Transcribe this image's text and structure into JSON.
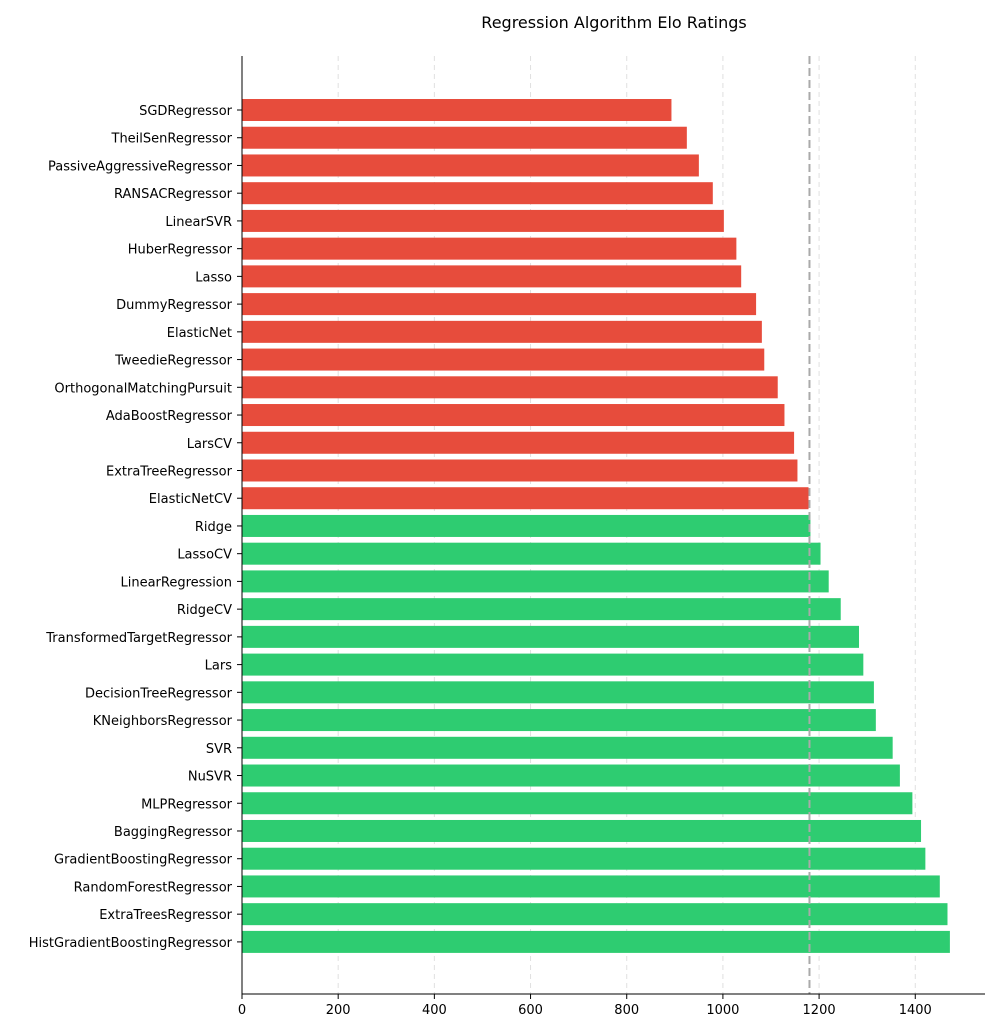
{
  "chart_data": {
    "type": "bar",
    "orientation": "horizontal",
    "title": "Regression Algorithm Elo Ratings",
    "xlabel": "",
    "ylabel": "",
    "xlim": [
      0,
      1545
    ],
    "xticks": [
      "0",
      "200",
      "400",
      "600",
      "800",
      "1000",
      "1200",
      "1400"
    ],
    "grid": "vertical dashed",
    "reference_line": 1180,
    "colors": {
      "below": "#e74c3c",
      "above": "#2ecc71",
      "reference": "#aaaaaa",
      "grid": "#e0e0e0"
    },
    "categories": [
      "SGDRegressor",
      "TheilSenRegressor",
      "PassiveAggressiveRegressor",
      "RANSACRegressor",
      "LinearSVR",
      "HuberRegressor",
      "Lasso",
      "DummyRegressor",
      "ElasticNet",
      "TweedieRegressor",
      "OrthogonalMatchingPursuit",
      "AdaBoostRegressor",
      "LarsCV",
      "ExtraTreeRegressor",
      "ElasticNetCV",
      "Ridge",
      "LassoCV",
      "LinearRegression",
      "RidgeCV",
      "TransformedTargetRegressor",
      "Lars",
      "DecisionTreeRegressor",
      "KNeighborsRegressor",
      "SVR",
      "NuSVR",
      "MLPRegressor",
      "BaggingRegressor",
      "GradientBoostingRegressor",
      "RandomForestRegressor",
      "ExtraTreesRegressor",
      "HistGradientBoostingRegressor"
    ],
    "values": [
      893,
      925,
      950,
      979,
      1002,
      1028,
      1038,
      1069,
      1081,
      1086,
      1114,
      1128,
      1148,
      1155,
      1178,
      1182,
      1203,
      1220,
      1245,
      1283,
      1292,
      1314,
      1318,
      1353,
      1368,
      1394,
      1412,
      1421,
      1451,
      1467,
      1472
    ]
  }
}
